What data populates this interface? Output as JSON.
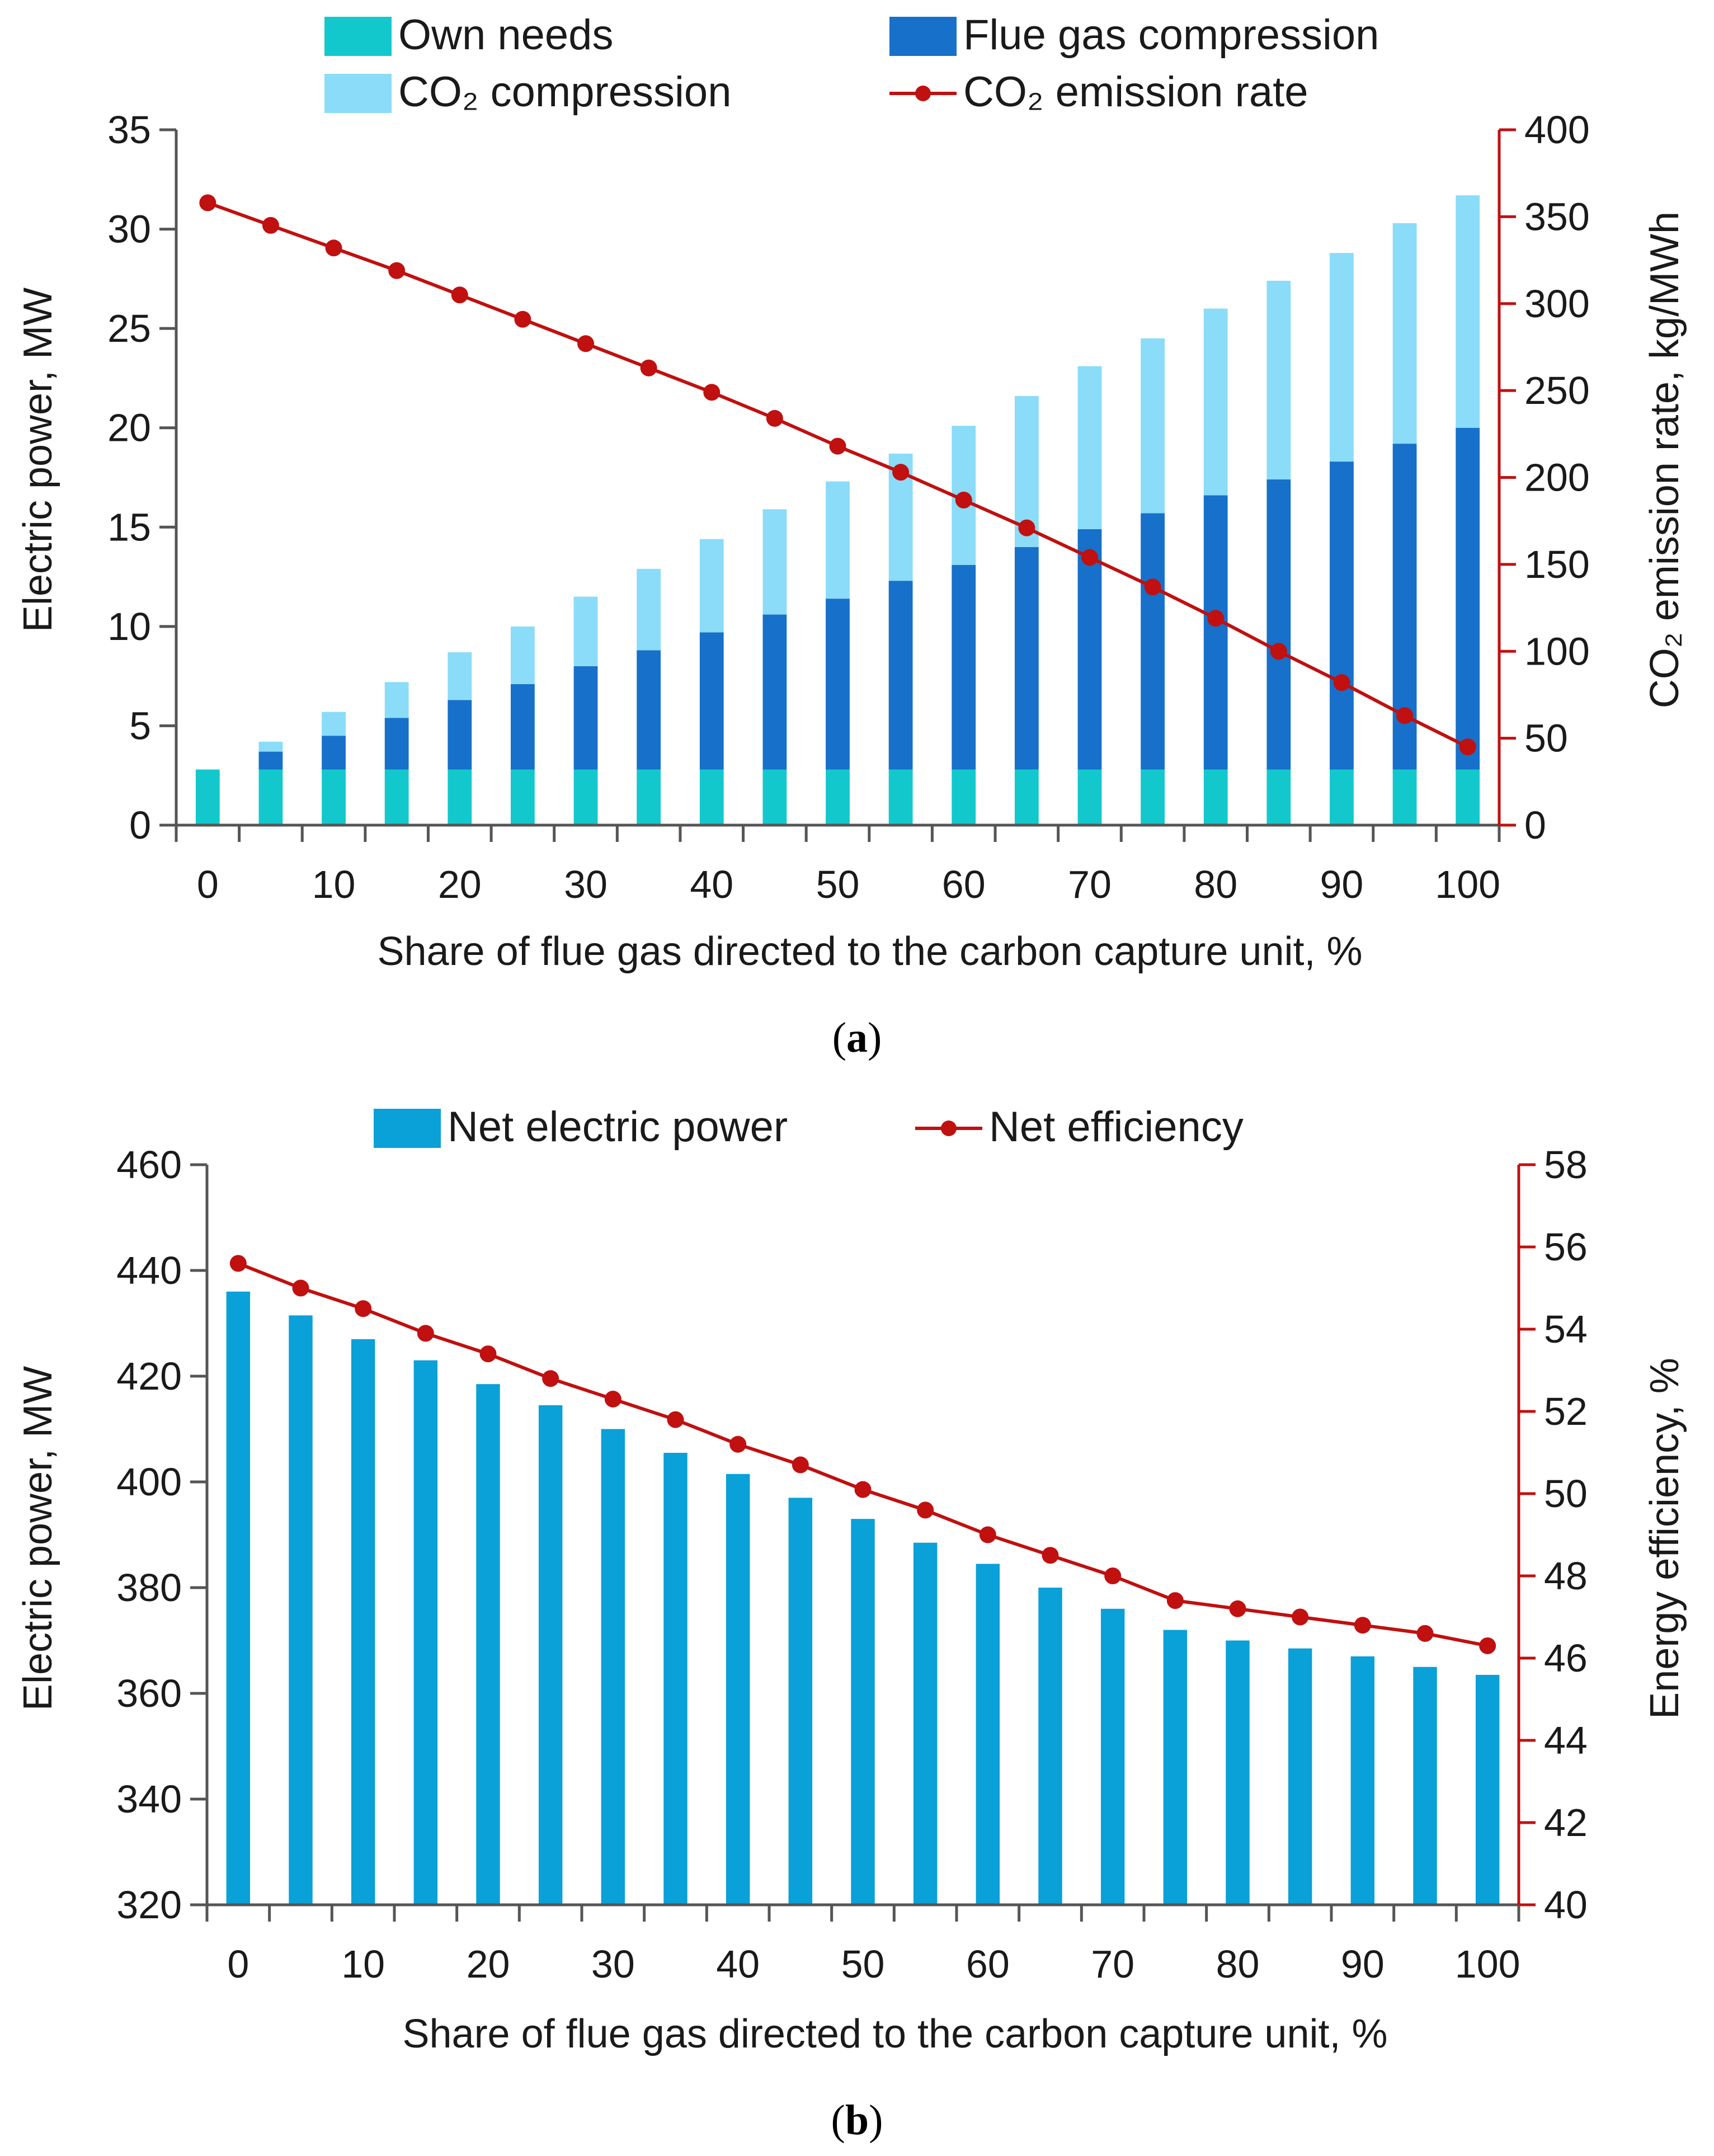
{
  "colors": {
    "own_needs": "#12C8CC",
    "flue_gas": "#1770C9",
    "co2_compression": "#8ADCF8",
    "line": "#C01010",
    "net_power": "#0AA0D8",
    "axis": "#555555"
  },
  "chart_data": [
    {
      "type": "bar",
      "stacked": true,
      "caption_label": "a",
      "categories": [
        "0",
        "5",
        "10",
        "15",
        "20",
        "25",
        "30",
        "35",
        "40",
        "45",
        "50",
        "55",
        "60",
        "65",
        "70",
        "75",
        "80",
        "85",
        "90",
        "95",
        "100"
      ],
      "x_tick_labels": [
        "0",
        "10",
        "20",
        "30",
        "40",
        "50",
        "60",
        "70",
        "80",
        "90",
        "100"
      ],
      "xlabel": "Share of flue gas directed to the carbon capture unit, %",
      "ylabel": "Electric power, MW",
      "ylabel2": "CO₂ emission rate, kg/MWh",
      "ylim": [
        0,
        35
      ],
      "ylim2": [
        0,
        400
      ],
      "y_ticks": [
        "0",
        "5",
        "10",
        "15",
        "20",
        "25",
        "30",
        "35"
      ],
      "y2_ticks": [
        "0",
        "50",
        "100",
        "150",
        "200",
        "250",
        "300",
        "350",
        "400"
      ],
      "series": [
        {
          "name": "Own needs",
          "axis": "left",
          "values": [
            2.8,
            2.8,
            2.8,
            2.8,
            2.8,
            2.8,
            2.8,
            2.8,
            2.8,
            2.8,
            2.8,
            2.8,
            2.8,
            2.8,
            2.8,
            2.8,
            2.8,
            2.8,
            2.8,
            2.8,
            2.8
          ]
        },
        {
          "name": "Flue gas compression",
          "axis": "left",
          "values": [
            0,
            0.9,
            1.7,
            2.6,
            3.5,
            4.3,
            5.2,
            6.0,
            6.9,
            7.8,
            8.6,
            9.5,
            10.3,
            11.2,
            12.1,
            12.9,
            13.8,
            14.6,
            15.5,
            16.4,
            17.2
          ]
        },
        {
          "name": "CO₂ compression",
          "axis": "left",
          "values": [
            0,
            0.5,
            1.2,
            1.8,
            2.4,
            2.9,
            3.5,
            4.1,
            4.7,
            5.3,
            5.9,
            6.4,
            7.0,
            7.6,
            8.2,
            8.8,
            9.4,
            10.0,
            10.5,
            11.1,
            11.7
          ]
        },
        {
          "name": "CO₂ emission rate",
          "type": "line",
          "axis": "right",
          "values": [
            358,
            345,
            332,
            319,
            305,
            291,
            277,
            263,
            249,
            234,
            218,
            203,
            187,
            171,
            154,
            137,
            119,
            100,
            82,
            63,
            45
          ]
        }
      ]
    },
    {
      "type": "bar",
      "caption_label": "b",
      "categories": [
        "0",
        "5",
        "10",
        "15",
        "20",
        "25",
        "30",
        "35",
        "40",
        "45",
        "50",
        "55",
        "60",
        "65",
        "70",
        "75",
        "80",
        "85",
        "90",
        "95",
        "100"
      ],
      "x_tick_labels": [
        "0",
        "10",
        "20",
        "30",
        "40",
        "50",
        "60",
        "70",
        "80",
        "90",
        "100"
      ],
      "xlabel": "Share of flue gas directed to the carbon capture unit, %",
      "ylabel": "Electric power, MW",
      "ylabel2": "Energy efficiency, %",
      "ylim": [
        320,
        460
      ],
      "ylim2": [
        40,
        58
      ],
      "y_ticks": [
        "320",
        "340",
        "360",
        "380",
        "400",
        "420",
        "440",
        "460"
      ],
      "y2_ticks": [
        "40",
        "42",
        "44",
        "46",
        "48",
        "50",
        "52",
        "54",
        "56",
        "58"
      ],
      "series": [
        {
          "name": "Net electric power",
          "axis": "left",
          "values": [
            436,
            431.5,
            427,
            423,
            418.5,
            414.5,
            410,
            405.5,
            401.5,
            397,
            393,
            388.5,
            384.5,
            380,
            376,
            372,
            370,
            368.5,
            367,
            365,
            363.5
          ]
        },
        {
          "name": "Net efficiency",
          "type": "line",
          "axis": "right",
          "values": [
            55.6,
            55.0,
            54.5,
            53.9,
            53.4,
            52.8,
            52.3,
            51.8,
            51.2,
            50.7,
            50.1,
            49.6,
            49.0,
            48.5,
            48.0,
            47.4,
            47.2,
            47.0,
            46.8,
            46.6,
            46.3
          ]
        }
      ]
    }
  ]
}
